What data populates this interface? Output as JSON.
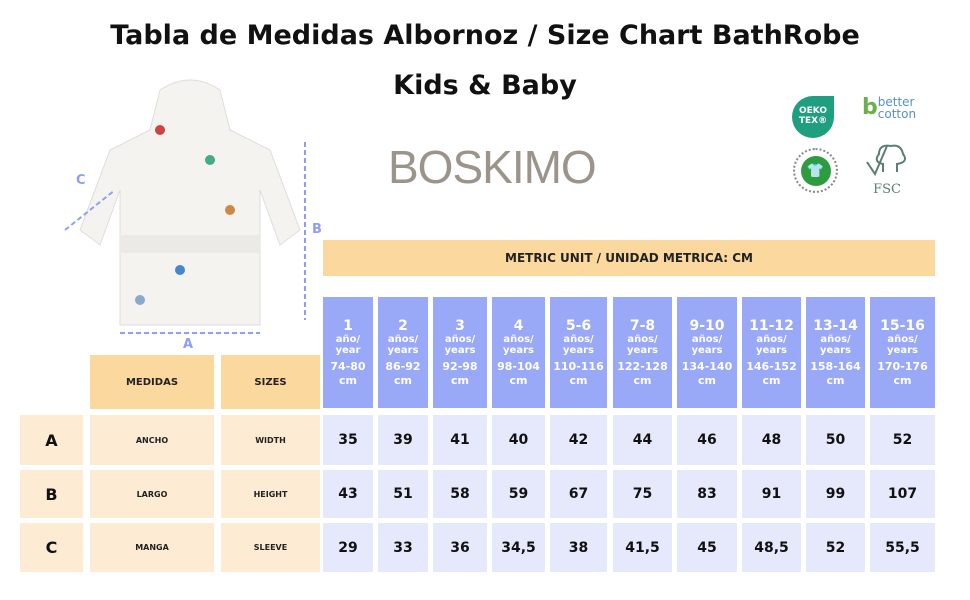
{
  "title_line1": "Tabla de Medidas Albornoz / Size Chart BathRobe",
  "title_line2": "Kids & Baby",
  "brand": "BOSKIMO",
  "logos": {
    "oeko": "OEKO TEX®",
    "better_cotton": "better cotton",
    "gots": "GLOBAL ORGANIC TEXTILE STANDARD",
    "fsc": "FSC"
  },
  "diagram_labels": {
    "a": "A",
    "b": "B",
    "c": "C"
  },
  "metric_label": "METRIC UNIT / UNIDAD METRICA: CM",
  "col_headers": {
    "medidas": "MEDIDAS",
    "sizes": "SIZES"
  },
  "sizes": [
    {
      "age": "1",
      "unit": "año/",
      "unit2": "year",
      "cm": "74-80",
      "cmu": "cm"
    },
    {
      "age": "2",
      "unit": "años/",
      "unit2": "years",
      "cm": "86-92",
      "cmu": "cm"
    },
    {
      "age": "3",
      "unit": "años/",
      "unit2": "years",
      "cm": "92-98",
      "cmu": "cm"
    },
    {
      "age": "4",
      "unit": "años/",
      "unit2": "years",
      "cm": "98-104",
      "cmu": "cm"
    },
    {
      "age": "5-6",
      "unit": "años/",
      "unit2": "years",
      "cm": "110-116",
      "cmu": "cm"
    },
    {
      "age": "7-8",
      "unit": "años/",
      "unit2": "years",
      "cm": "122-128",
      "cmu": "cm"
    },
    {
      "age": "9-10",
      "unit": "años/",
      "unit2": "years",
      "cm": "134-140",
      "cmu": "cm"
    },
    {
      "age": "11-12",
      "unit": "años/",
      "unit2": "years",
      "cm": "146-152",
      "cmu": "cm"
    },
    {
      "age": "13-14",
      "unit": "años/",
      "unit2": "years",
      "cm": "158-164",
      "cmu": "cm"
    },
    {
      "age": "15-16",
      "unit": "años/",
      "unit2": "years",
      "cm": "170-176",
      "cmu": "cm"
    }
  ],
  "rows": [
    {
      "letter": "A",
      "es": "ANCHO",
      "en": "WIDTH",
      "values": [
        "35",
        "39",
        "41",
        "40",
        "42",
        "44",
        "46",
        "48",
        "50",
        "52"
      ]
    },
    {
      "letter": "B",
      "es": "LARGO",
      "en": "HEIGHT",
      "values": [
        "43",
        "51",
        "58",
        "59",
        "67",
        "75",
        "83",
        "91",
        "99",
        "107"
      ]
    },
    {
      "letter": "C",
      "es": "MANGA",
      "en": "SLEEVE",
      "values": [
        "29",
        "33",
        "36",
        "34,5",
        "38",
        "41,5",
        "45",
        "48,5",
        "52",
        "55,5"
      ]
    }
  ]
}
